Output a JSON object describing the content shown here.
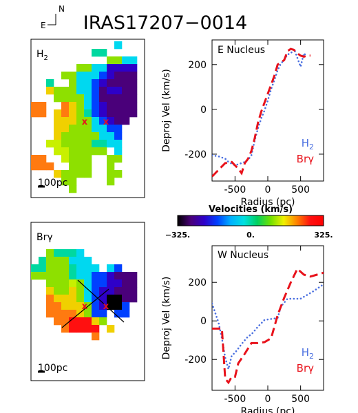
{
  "title": "IRAS17207−0014",
  "compass": {
    "north": "N",
    "east": "E"
  },
  "maps": [
    {
      "label_base": "H",
      "label_sub": "2",
      "scale_label": "100pc"
    },
    {
      "label_base": "Brγ",
      "label_sub": "",
      "scale_label": "100pc"
    }
  ],
  "colorbar": {
    "title": "Velocities (km/s)",
    "min": -325,
    "max": 325,
    "tick_labels": [
      "−325.",
      "0.",
      "325."
    ],
    "colors": [
      "#000000",
      "#4a007a",
      "#2e00c8",
      "#0040ff",
      "#00b0ff",
      "#00e0e0",
      "#00d060",
      "#70e000",
      "#f0f000",
      "#ff8000",
      "#ff1010",
      "#ff0000"
    ]
  },
  "colors": {
    "h2": "#4a6fe0",
    "brg": "#e8121b",
    "marker": "#e8121b"
  },
  "chart_data": [
    {
      "type": "line",
      "panel_label": "E Nucleus",
      "xlabel": "Radius (pc)",
      "ylabel": "Deproj Vel (km/s)",
      "xlim": [
        -850,
        850
      ],
      "ylim": [
        -320,
        310
      ],
      "xticks": [
        -500,
        0,
        500
      ],
      "yticks": [
        -200,
        0,
        200
      ],
      "series": [
        {
          "name": "H2",
          "name_base": "H",
          "name_sub": "2",
          "color": "#4a6fe0",
          "style": "dotted",
          "x": [
            -850,
            -750,
            -650,
            -600,
            -500,
            -450,
            -350,
            -300,
            -250,
            -200,
            -150,
            -100,
            -50,
            0,
            50,
            100,
            150,
            200,
            250,
            300,
            350,
            400,
            450,
            500,
            550,
            600
          ],
          "y": [
            -205,
            -210,
            -220,
            -235,
            -250,
            -245,
            -235,
            -225,
            -205,
            -140,
            -85,
            -40,
            -5,
            40,
            90,
            130,
            175,
            205,
            220,
            245,
            250,
            270,
            230,
            190,
            250,
            235
          ]
        },
        {
          "name": "Brγ",
          "name_base": "Brγ",
          "name_sub": "",
          "color": "#e8121b",
          "style": "dashed",
          "x": [
            -850,
            -750,
            -650,
            -550,
            -450,
            -400,
            -350,
            -300,
            -250,
            -200,
            -150,
            -100,
            -50,
            0,
            50,
            100,
            150,
            200,
            250,
            300,
            350,
            400,
            450,
            500,
            550,
            600,
            650
          ],
          "y": [
            -300,
            -270,
            -240,
            -235,
            -265,
            -285,
            -240,
            -220,
            -185,
            -130,
            -60,
            -10,
            30,
            70,
            110,
            150,
            200,
            210,
            220,
            260,
            270,
            265,
            250,
            240,
            235,
            240,
            240
          ]
        }
      ]
    },
    {
      "type": "line",
      "panel_label": "W Nucleus",
      "xlabel": "Radius (pc)",
      "ylabel": "Deproj Vel (km/s)",
      "xlim": [
        -850,
        850
      ],
      "ylim": [
        -360,
        390
      ],
      "xticks": [
        -500,
        0,
        500
      ],
      "yticks": [
        -200,
        0,
        200
      ],
      "series": [
        {
          "name": "H2",
          "name_base": "H",
          "name_sub": "2",
          "color": "#4a6fe0",
          "style": "dotted",
          "x": [
            -850,
            -800,
            -750,
            -700,
            -650,
            -600,
            -550,
            -500,
            -400,
            -300,
            -250,
            -150,
            -50,
            50,
            150,
            200,
            300,
            400,
            500,
            600,
            700,
            850
          ],
          "y": [
            90,
            40,
            -10,
            -90,
            -190,
            -250,
            -180,
            -165,
            -120,
            -80,
            -70,
            -30,
            5,
            10,
            15,
            75,
            115,
            115,
            115,
            135,
            155,
            190
          ]
        },
        {
          "name": "Brγ",
          "name_base": "Brγ",
          "name_sub": "",
          "color": "#e8121b",
          "style": "dashed",
          "x": [
            -850,
            -700,
            -650,
            -600,
            -550,
            -500,
            -450,
            -350,
            -250,
            -150,
            -50,
            50,
            150,
            250,
            350,
            450,
            550,
            650,
            750,
            850
          ],
          "y": [
            -40,
            -40,
            -300,
            -320,
            -290,
            -290,
            -220,
            -170,
            -115,
            -115,
            -110,
            -90,
            30,
            120,
            200,
            270,
            240,
            230,
            240,
            250
          ]
        }
      ]
    }
  ]
}
